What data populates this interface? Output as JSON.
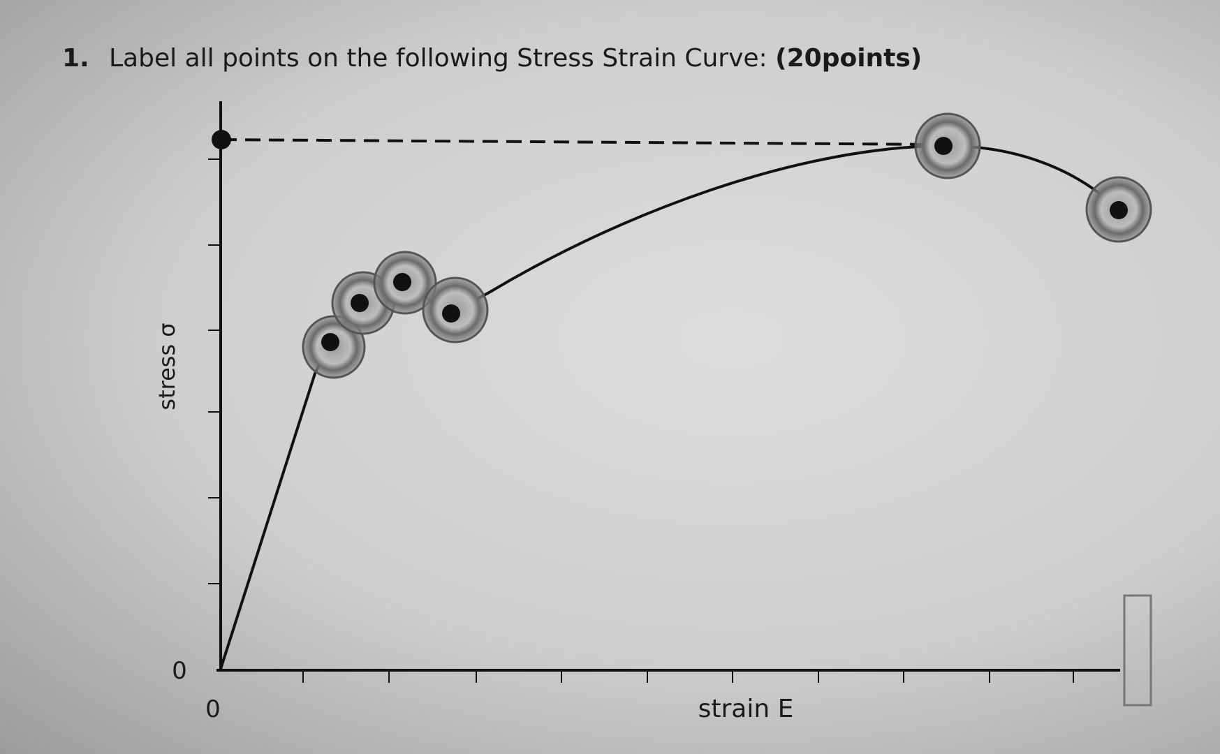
{
  "question": {
    "number": "1.",
    "text": "Label all points on the following Stress Strain Curve:",
    "points": "(20points)"
  },
  "diagram": {
    "y_label": "stress σ",
    "x_label": "strain E",
    "y_origin_label": "0",
    "x_origin_label": "0"
  }
}
